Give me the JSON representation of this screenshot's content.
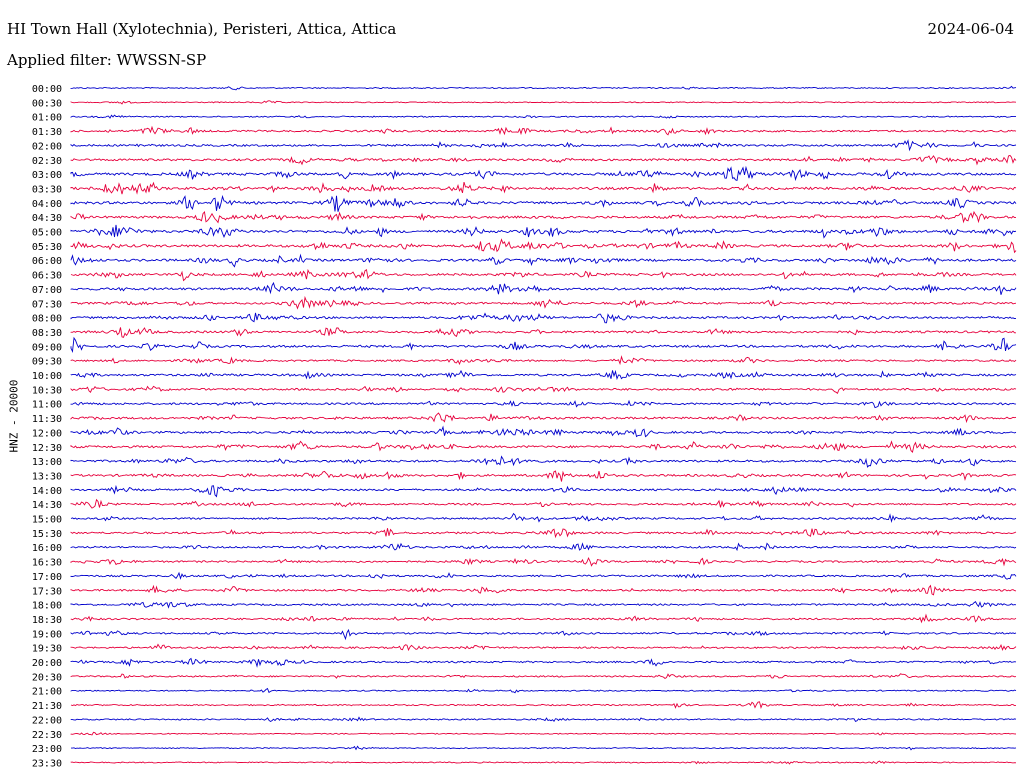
{
  "header": {
    "title": "HI Town Hall (Xylotechnia), Peristeri, Attica, Attica",
    "date": "2024-06-04",
    "filter": "Applied filter: WWSSN-SP"
  },
  "channel_label": "HNZ - 20000",
  "colors": {
    "even_row": "#0000cc",
    "odd_row": "#e6003c",
    "label": "#000000"
  },
  "chart_data": {
    "type": "line",
    "title": "HI Town Hall (Xylotechnia), Peristeri, Attica, Attica",
    "ylabel": "HNZ - 20000",
    "row_labels": [
      "00:00",
      "00:30",
      "01:00",
      "01:30",
      "02:00",
      "02:30",
      "03:00",
      "03:30",
      "04:00",
      "04:30",
      "05:00",
      "05:30",
      "06:00",
      "06:30",
      "07:00",
      "07:30",
      "08:00",
      "08:30",
      "09:00",
      "09:30",
      "10:00",
      "10:30",
      "11:00",
      "11:30",
      "12:00",
      "12:30",
      "13:00",
      "13:30",
      "14:00",
      "14:30",
      "15:00",
      "15:30",
      "16:00",
      "16:30",
      "17:00",
      "17:30",
      "18:00",
      "18:30",
      "19:00",
      "19:30",
      "20:00",
      "20:30",
      "21:00",
      "21:30",
      "22:00",
      "22:30",
      "23:00",
      "23:30"
    ],
    "activity": [
      0.15,
      0.1,
      0.2,
      0.55,
      0.6,
      0.7,
      0.9,
      0.85,
      0.9,
      0.8,
      0.95,
      0.9,
      0.85,
      0.75,
      0.8,
      0.65,
      0.7,
      0.7,
      0.75,
      0.5,
      0.65,
      0.6,
      0.6,
      0.65,
      0.7,
      0.75,
      0.7,
      0.7,
      0.65,
      0.55,
      0.55,
      0.6,
      0.55,
      0.55,
      0.5,
      0.55,
      0.5,
      0.5,
      0.5,
      0.45,
      0.5,
      0.35,
      0.2,
      0.25,
      0.3,
      0.1,
      0.1,
      0.15
    ]
  }
}
